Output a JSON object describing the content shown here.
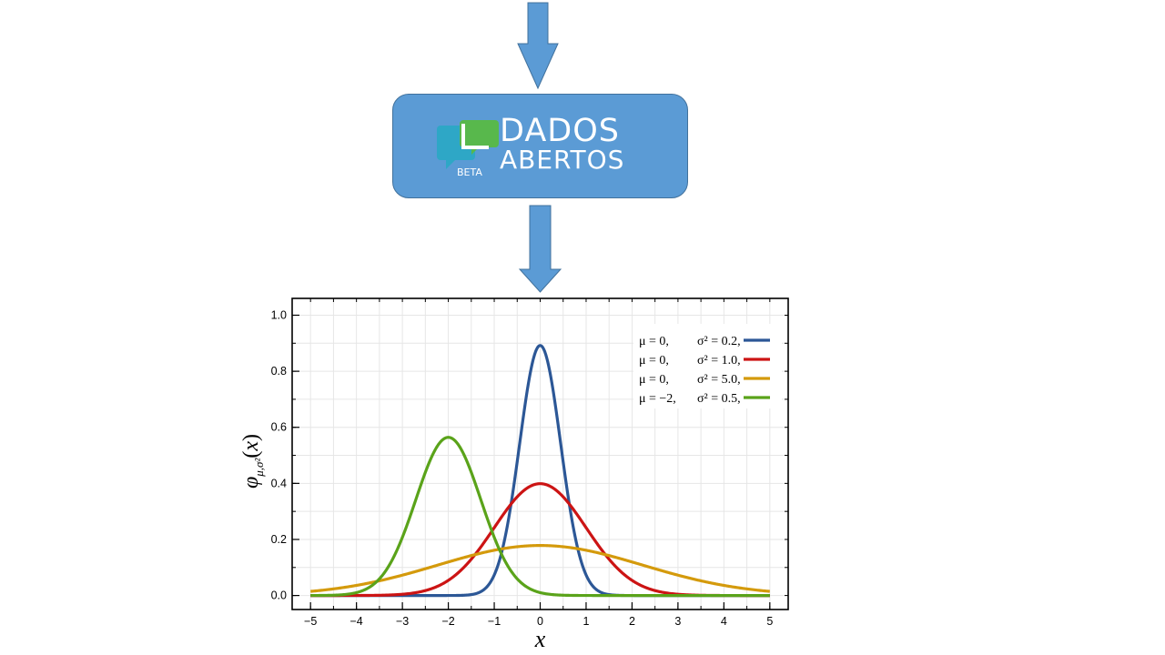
{
  "logo": {
    "line1": "DADOS",
    "line2": "ABERTOS",
    "badge": "BETA",
    "box_color": "#5b9bd5",
    "icon_colors": {
      "front": "#58b84c",
      "back": "#2ea7c6"
    }
  },
  "arrow_color": "#5b9bd5",
  "chart_data": {
    "type": "line",
    "xlabel": "x",
    "ylabel": "φμ,σ²(x)",
    "xlim": [
      -5.4,
      5.4
    ],
    "ylim": [
      -0.05,
      1.06
    ],
    "xticks": [
      -5,
      -4,
      -3,
      -2,
      -1,
      0,
      1,
      2,
      3,
      4,
      5
    ],
    "xtick_labels": [
      "−5",
      "−4",
      "−3",
      "−2",
      "−1",
      "0",
      "1",
      "2",
      "3",
      "4",
      "5"
    ],
    "yticks": [
      0.0,
      0.2,
      0.4,
      0.6,
      0.8,
      1.0
    ],
    "ytick_labels": [
      "0.0",
      "0.2",
      "0.4",
      "0.6",
      "0.8",
      "1.0"
    ],
    "grid": true,
    "legend_position": "top-right",
    "x_range": [
      -5,
      5
    ],
    "series": [
      {
        "mu": 0,
        "sigma2": 0.2,
        "color": "#2c5796",
        "legend": {
          "mu": "μ = 0,",
          "sigma": "σ² = 0.2,"
        }
      },
      {
        "mu": 0,
        "sigma2": 1.0,
        "color": "#cc1414",
        "legend": {
          "mu": "μ = 0,",
          "sigma": "σ² = 1.0,"
        }
      },
      {
        "mu": 0,
        "sigma2": 5.0,
        "color": "#d49a0c",
        "legend": {
          "mu": "μ = 0,",
          "sigma": "σ² = 5.0,"
        }
      },
      {
        "mu": -2,
        "sigma2": 0.5,
        "color": "#5aa31a",
        "legend": {
          "mu": "μ = −2,",
          "sigma": "σ² = 0.5,"
        }
      }
    ]
  }
}
